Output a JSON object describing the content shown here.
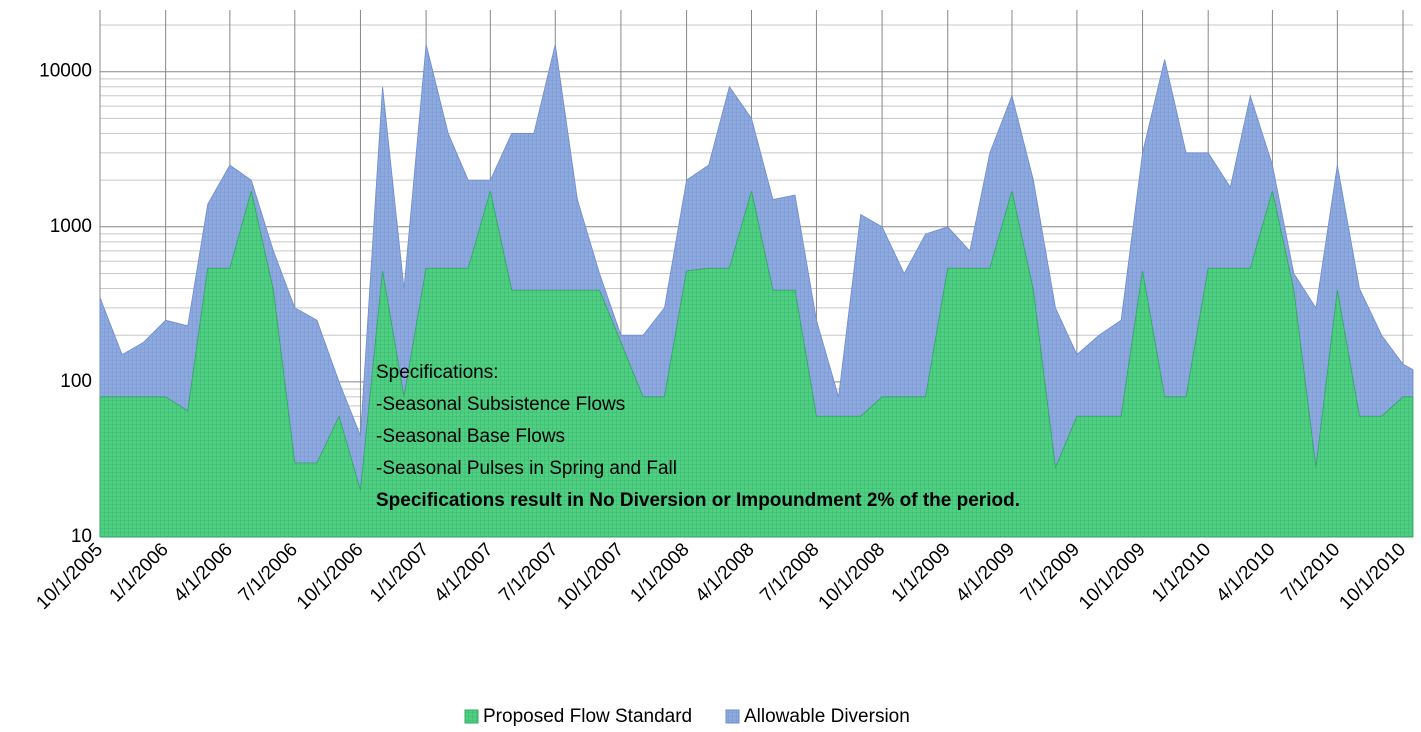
{
  "chart_data": {
    "type": "stacked-area",
    "log_scale": true,
    "grid": true,
    "minor_grid": true,
    "legend": "bottom",
    "x": [
      "10/1/2005",
      "11/1/2005",
      "12/1/2005",
      "1/1/2006",
      "2/1/2006",
      "3/1/2006",
      "4/1/2006",
      "5/1/2006",
      "6/1/2006",
      "7/1/2006",
      "8/1/2006",
      "9/1/2006",
      "10/1/2006",
      "11/1/2006",
      "12/1/2006",
      "1/1/2007",
      "2/1/2007",
      "3/1/2007",
      "4/1/2007",
      "5/1/2007",
      "6/1/2007",
      "7/1/2007",
      "8/1/2007",
      "9/1/2007",
      "10/1/2007",
      "11/1/2007",
      "12/1/2007",
      "1/1/2008",
      "2/1/2008",
      "3/1/2008",
      "4/1/2008",
      "5/1/2008",
      "6/1/2008",
      "7/1/2008",
      "8/1/2008",
      "9/1/2008",
      "10/1/2008",
      "11/1/2008",
      "12/1/2008",
      "1/1/2009",
      "2/1/2009",
      "3/1/2009",
      "4/1/2009",
      "5/1/2009",
      "6/1/2009",
      "7/1/2009",
      "8/1/2009",
      "9/1/2009",
      "10/1/2009",
      "11/1/2009",
      "12/1/2009",
      "1/1/2010",
      "2/1/2010",
      "3/1/2010",
      "4/1/2010",
      "5/1/2010",
      "6/1/2010",
      "7/1/2010",
      "8/1/2010",
      "9/1/2010",
      "10/1/2010",
      "10/15/2010"
    ],
    "series": [
      {
        "name": "Proposed Flow Standard",
        "color": "#4fcf82",
        "values": [
          80,
          80,
          80,
          80,
          65,
          540,
          540,
          1700,
          390,
          30,
          30,
          60,
          20,
          520,
          80,
          540,
          540,
          540,
          1700,
          390,
          390,
          390,
          390,
          390,
          180,
          80,
          80,
          520,
          540,
          540,
          1700,
          390,
          390,
          60,
          60,
          60,
          80,
          80,
          80,
          540,
          540,
          540,
          1700,
          390,
          28,
          60,
          60,
          60,
          520,
          80,
          80,
          540,
          540,
          540,
          1700,
          390,
          28,
          390,
          60,
          60,
          80,
          80
        ]
      },
      {
        "name": "Allowable Diversion",
        "color": "#8ea9de",
        "values": [
          270,
          70,
          100,
          170,
          165,
          860,
          1960,
          300,
          310,
          270,
          220,
          40,
          25,
          7480,
          320,
          14460,
          3460,
          1460,
          300,
          3610,
          3610,
          14610,
          1110,
          110,
          20,
          120,
          220,
          1480,
          1960,
          7460,
          3300,
          1110,
          1210,
          190,
          20,
          1140,
          920,
          420,
          820,
          460,
          160,
          2460,
          5300,
          1610,
          272,
          90,
          140,
          190,
          2480,
          11920,
          2920,
          2460,
          1260,
          6460,
          800,
          110,
          272,
          2110,
          340,
          140,
          50,
          40
        ]
      }
    ],
    "xlim": [
      "10/1/2005",
      "10/15/2010"
    ],
    "xticks": [
      "10/1/2005",
      "1/1/2006",
      "4/1/2006",
      "7/1/2006",
      "10/1/2006",
      "1/1/2007",
      "4/1/2007",
      "7/1/2007",
      "10/1/2007",
      "1/1/2008",
      "4/1/2008",
      "7/1/2008",
      "10/1/2008",
      "1/1/2009",
      "4/1/2009",
      "7/1/2009",
      "10/1/2009",
      "1/1/2010",
      "4/1/2010",
      "7/1/2010",
      "10/1/2010"
    ],
    "ylim": [
      10,
      25000
    ],
    "yticks": [
      10,
      100,
      1000,
      10000
    ],
    "annotation": {
      "lines": [
        "Specifications:",
        "-Seasonal Subsistence Flows",
        "-Seasonal Base Flows",
        "-Seasonal Pulses in Spring and Fall"
      ],
      "bold_line": "Specifications result in No Diversion or Impoundment 2% of the period."
    }
  }
}
